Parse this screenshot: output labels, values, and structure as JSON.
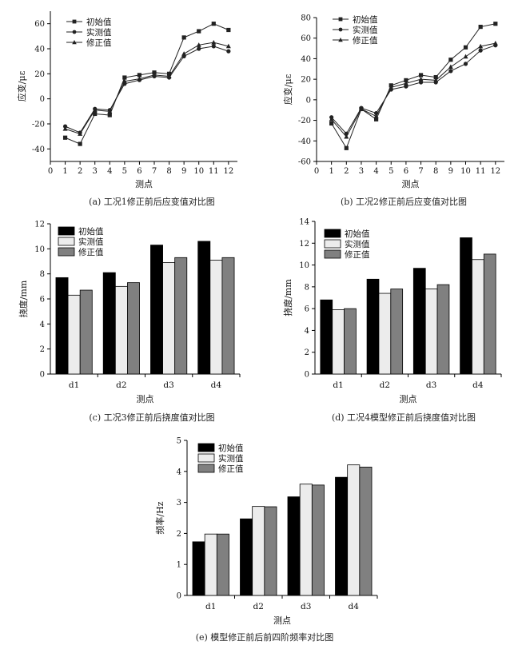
{
  "figure": {
    "captions": [
      "(a) 工况1修正前后应变值对比图",
      "(b) 工况2修正前后应变值对比图",
      "(c) 工况3修正前后挠度值对比图",
      "(d) 工况4模型修正前后挠度值对比图",
      "(e) 模型修正前后前四阶频率对比图"
    ]
  },
  "colors": {
    "initial": "#000000",
    "measured": "#ececec",
    "corrected": "#808080",
    "axis": "#000000",
    "line": "#222222"
  },
  "chart_data": [
    {
      "id": "a",
      "type": "line",
      "xlabel": "测点",
      "ylabel": "应变/με",
      "xlim": [
        0,
        12.6
      ],
      "ylim": [
        -50,
        70
      ],
      "xticks": [
        0,
        1,
        2,
        3,
        4,
        5,
        6,
        7,
        8,
        9,
        10,
        11,
        12
      ],
      "yticks": [
        -40,
        -20,
        0,
        20,
        40,
        60
      ],
      "x": [
        1,
        2,
        3,
        4,
        5,
        6,
        7,
        8,
        9,
        10,
        11,
        12
      ],
      "series": [
        {
          "name": "初始值",
          "marker": "square",
          "values": [
            -31,
            -36,
            -12,
            -13,
            17,
            19,
            21,
            20,
            49,
            54,
            60,
            55
          ]
        },
        {
          "name": "实测值",
          "marker": "circle",
          "values": [
            -22,
            -27,
            -8,
            -9,
            12,
            15,
            18,
            17,
            34,
            40,
            42,
            38
          ]
        },
        {
          "name": "修正值",
          "marker": "triangle",
          "values": [
            -24,
            -28,
            -9,
            -10,
            14,
            16,
            19,
            18,
            36,
            43,
            45,
            42
          ]
        }
      ],
      "legend": "top-left"
    },
    {
      "id": "b",
      "type": "line",
      "xlabel": "测点",
      "ylabel": "应变/με",
      "xlim": [
        0,
        12.6
      ],
      "ylim": [
        -60,
        80
      ],
      "xticks": [
        0,
        1,
        2,
        3,
        4,
        5,
        6,
        7,
        8,
        9,
        10,
        11,
        12
      ],
      "yticks": [
        -60,
        -40,
        -20,
        0,
        20,
        40,
        60,
        80
      ],
      "x": [
        1,
        2,
        3,
        4,
        5,
        6,
        7,
        8,
        9,
        10,
        11,
        12
      ],
      "series": [
        {
          "name": "初始值",
          "marker": "square",
          "values": [
            -23,
            -47,
            -9,
            -19,
            14,
            19,
            24,
            22,
            39,
            51,
            71,
            74
          ]
        },
        {
          "name": "实测值",
          "marker": "circle",
          "values": [
            -17,
            -33,
            -8,
            -13,
            10,
            13,
            17,
            17,
            28,
            35,
            48,
            53
          ]
        },
        {
          "name": "修正值",
          "marker": "triangle",
          "values": [
            -19,
            -36,
            -9,
            -16,
            12,
            16,
            20,
            19,
            32,
            42,
            52,
            55
          ]
        }
      ],
      "legend": "top-left"
    },
    {
      "id": "c",
      "type": "bar",
      "xlabel": "测点",
      "ylabel": "挠度/mm",
      "categories": [
        "d1",
        "d2",
        "d3",
        "d4"
      ],
      "ylim": [
        0,
        12
      ],
      "yticks": [
        0,
        2,
        4,
        6,
        8,
        10,
        12
      ],
      "series": [
        {
          "name": "初始值",
          "values": [
            7.7,
            8.1,
            10.3,
            10.6
          ]
        },
        {
          "name": "实测值",
          "values": [
            6.3,
            7.0,
            8.9,
            9.1
          ]
        },
        {
          "name": "修正值",
          "values": [
            6.7,
            7.3,
            9.3,
            9.3
          ]
        }
      ],
      "legend": "top-left"
    },
    {
      "id": "d",
      "type": "bar",
      "xlabel": "测点",
      "ylabel": "挠度/mm",
      "categories": [
        "d1",
        "d2",
        "d3",
        "d4"
      ],
      "ylim": [
        0,
        14
      ],
      "yticks": [
        0,
        2,
        4,
        6,
        8,
        10,
        12,
        14
      ],
      "series": [
        {
          "name": "初始值",
          "values": [
            6.8,
            8.7,
            9.7,
            12.5
          ]
        },
        {
          "name": "实测值",
          "values": [
            5.9,
            7.4,
            7.8,
            10.5
          ]
        },
        {
          "name": "修正值",
          "values": [
            6.0,
            7.8,
            8.2,
            11.0
          ]
        }
      ],
      "legend": "top-left"
    },
    {
      "id": "e",
      "type": "bar",
      "xlabel": "测点",
      "ylabel": "频率/Hz",
      "categories": [
        "d1",
        "d2",
        "d3",
        "d4"
      ],
      "ylim": [
        0,
        5
      ],
      "yticks": [
        0,
        1,
        2,
        3,
        4,
        5
      ],
      "series": [
        {
          "name": "初始值",
          "values": [
            1.73,
            2.47,
            3.18,
            3.81
          ]
        },
        {
          "name": "实测值",
          "values": [
            1.98,
            2.87,
            3.59,
            4.21
          ]
        },
        {
          "name": "修正值",
          "values": [
            1.98,
            2.86,
            3.56,
            4.14
          ]
        }
      ],
      "legend": "top-left"
    }
  ]
}
